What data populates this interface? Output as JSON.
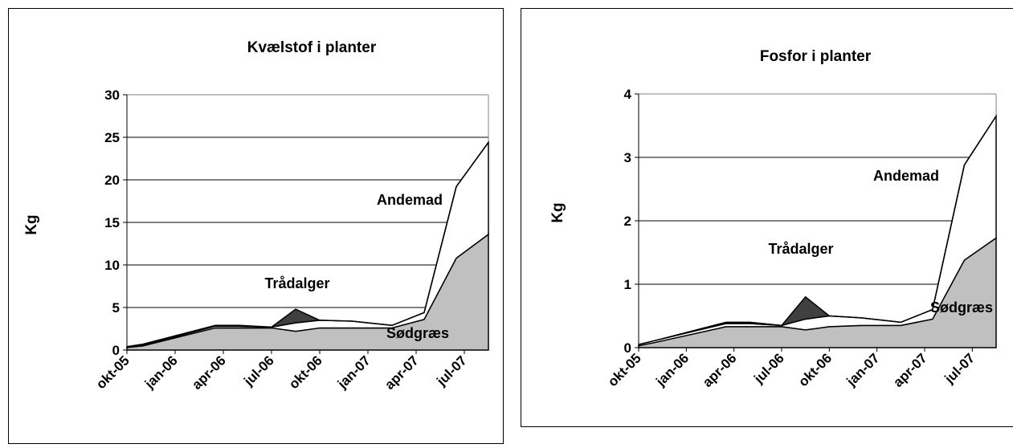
{
  "chart_data": [
    {
      "type": "area",
      "title": "Kvælstof i planter",
      "ylabel": "Kg",
      "x": [
        0,
        1,
        5.5,
        7,
        9,
        10.5,
        12,
        14,
        16.5,
        18.5,
        20.5,
        22.5
      ],
      "xlim": [
        0,
        22.5
      ],
      "xticks": [
        {
          "value": 0,
          "label": "okt-05"
        },
        {
          "value": 3,
          "label": "jan-06"
        },
        {
          "value": 6,
          "label": "apr-06"
        },
        {
          "value": 9,
          "label": "jul-06"
        },
        {
          "value": 12,
          "label": "okt-06"
        },
        {
          "value": 15,
          "label": "jan-07"
        },
        {
          "value": 18,
          "label": "apr-07"
        },
        {
          "value": 21,
          "label": "jul-07"
        }
      ],
      "ylim": [
        0,
        30
      ],
      "yticks": [
        0,
        5,
        10,
        15,
        20,
        25,
        30
      ],
      "grid": true,
      "series": [
        {
          "name": "Sødgræs",
          "color": "#c0c0c0",
          "values": [
            0.3,
            0.5,
            2.6,
            2.6,
            2.6,
            2.2,
            2.6,
            2.6,
            2.6,
            3.6,
            10.8,
            13.6
          ]
        },
        {
          "name": "Andemad",
          "color": "#ffffff",
          "values": [
            0.1,
            0.1,
            0.2,
            0.2,
            0.1,
            1.0,
            0.9,
            0.8,
            0.3,
            0.8,
            8.4,
            10.8
          ]
        },
        {
          "name": "Trådalger",
          "color": "#404040",
          "values": [
            0,
            0.1,
            0.1,
            0.1,
            0,
            1.6,
            0,
            0,
            0,
            0,
            0,
            0
          ]
        }
      ]
    },
    {
      "type": "area",
      "title": "Fosfor i planter",
      "ylabel": "Kg",
      "x": [
        0,
        1,
        5.5,
        7,
        9,
        10.5,
        12,
        14,
        16.5,
        18.5,
        20.5,
        22.5
      ],
      "xlim": [
        0,
        22.5
      ],
      "xticks": [
        {
          "value": 0,
          "label": "okt-05"
        },
        {
          "value": 3,
          "label": "jan-06"
        },
        {
          "value": 6,
          "label": "apr-06"
        },
        {
          "value": 9,
          "label": "jul-06"
        },
        {
          "value": 12,
          "label": "okt-06"
        },
        {
          "value": 15,
          "label": "jan-07"
        },
        {
          "value": 18,
          "label": "apr-07"
        },
        {
          "value": 21,
          "label": "jul-07"
        }
      ],
      "ylim": [
        0,
        4
      ],
      "yticks": [
        0,
        1,
        2,
        3,
        4
      ],
      "grid": true,
      "series": [
        {
          "name": "Sødgræs",
          "color": "#c0c0c0",
          "values": [
            0.03,
            0.08,
            0.33,
            0.33,
            0.33,
            0.28,
            0.33,
            0.35,
            0.35,
            0.45,
            1.38,
            1.73
          ]
        },
        {
          "name": "Andemad",
          "color": "#ffffff",
          "values": [
            0.02,
            0.03,
            0.05,
            0.05,
            0.02,
            0.17,
            0.17,
            0.12,
            0.05,
            0.15,
            1.5,
            1.92
          ]
        },
        {
          "name": "Trådalger",
          "color": "#404040",
          "values": [
            0,
            0,
            0.02,
            0.02,
            0,
            0.35,
            0,
            0,
            0,
            0,
            0,
            0
          ]
        }
      ]
    }
  ]
}
